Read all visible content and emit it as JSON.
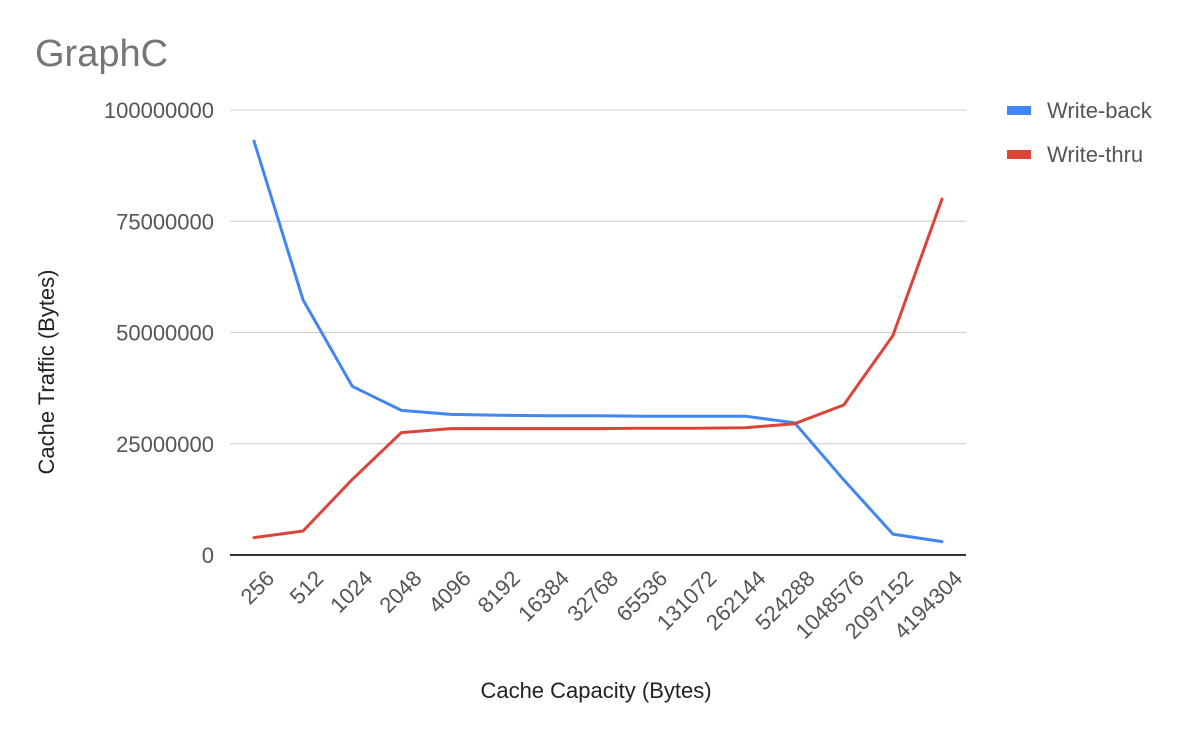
{
  "chart_data": {
    "type": "line",
    "title": "GraphC",
    "xlabel": "Cache Capacity (Bytes)",
    "ylabel": "Cache Traffic (Bytes)",
    "categories": [
      "256",
      "512",
      "1024",
      "2048",
      "4096",
      "8192",
      "16384",
      "32768",
      "65536",
      "131072",
      "262144",
      "524288",
      "1048576",
      "2097152",
      "4194304"
    ],
    "ylim": [
      0,
      100000000
    ],
    "yticks": [
      {
        "value": 0,
        "label": "0"
      },
      {
        "value": 25000000,
        "label": "25000000"
      },
      {
        "value": 50000000,
        "label": "50000000"
      },
      {
        "value": 75000000,
        "label": "75000000"
      },
      {
        "value": 100000000,
        "label": "100000000"
      }
    ],
    "grid": true,
    "legend_position": "top-right",
    "series": [
      {
        "name": "Write-back",
        "color": "#4285f4",
        "values": [
          93000000,
          57300000,
          37900000,
          32500000,
          31600000,
          31400000,
          31300000,
          31300000,
          31200000,
          31200000,
          31200000,
          29700000,
          16900000,
          4700000,
          3000000
        ]
      },
      {
        "name": "Write-thru",
        "color": "#db4437",
        "values": [
          3900000,
          5400000,
          17000000,
          27500000,
          28400000,
          28400000,
          28400000,
          28400000,
          28500000,
          28500000,
          28600000,
          29500000,
          33700000,
          49300000,
          80000000
        ]
      }
    ]
  }
}
